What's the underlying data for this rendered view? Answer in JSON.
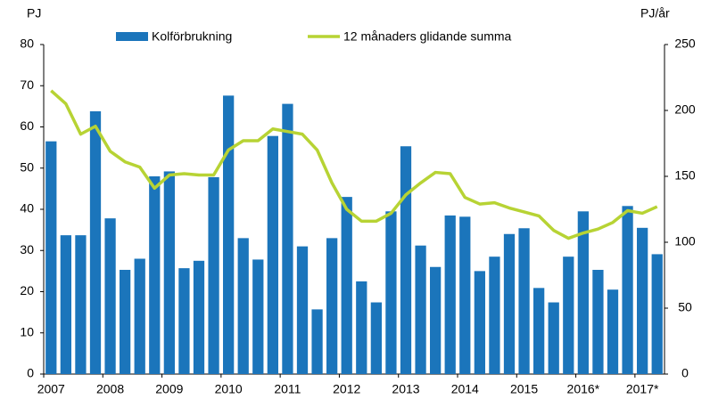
{
  "chart_data": {
    "type": "bar",
    "y_label": "PJ",
    "y2_label": "PJ/år",
    "categories": [
      "2007",
      null,
      null,
      null,
      "2008",
      null,
      null,
      null,
      "2009",
      null,
      null,
      null,
      "2010",
      null,
      null,
      null,
      "2011",
      null,
      null,
      null,
      "2012",
      null,
      null,
      null,
      "2013",
      null,
      null,
      null,
      "2014",
      null,
      null,
      null,
      "2015",
      null,
      null,
      null,
      "2016*",
      null,
      null,
      null,
      "2017*",
      null
    ],
    "series": [
      {
        "name": "Kolförbrukning",
        "type": "bar",
        "color": "#1b75bb",
        "values": [
          56.5,
          33.7,
          33.7,
          63.8,
          37.8,
          25.3,
          28.0,
          48.0,
          49.2,
          25.7,
          27.5,
          47.8,
          67.6,
          33.0,
          27.8,
          57.8,
          65.6,
          31.0,
          15.7,
          33.0,
          43.0,
          22.5,
          17.4,
          39.5,
          55.3,
          31.2,
          26.0,
          38.5,
          38.2,
          25.0,
          28.5,
          34.0,
          35.4,
          20.9,
          17.4,
          28.5,
          39.5,
          25.3,
          20.5,
          40.8,
          35.5,
          29.1
        ]
      },
      {
        "name": "12 månaders glidande summa",
        "type": "line",
        "axis": "y2",
        "color": "#b7d334",
        "values": [
          215,
          205,
          182,
          188,
          169,
          161,
          157,
          141,
          151,
          152,
          151,
          151,
          170,
          177,
          177,
          186,
          184,
          182,
          170,
          145,
          125,
          116,
          116,
          122,
          136,
          145,
          153,
          152,
          134,
          129,
          130,
          126,
          123,
          120,
          109,
          103,
          107,
          110,
          115,
          124,
          122,
          127
        ]
      }
    ],
    "ylim": [
      0,
      80
    ],
    "yticks": [
      0,
      10,
      20,
      30,
      40,
      50,
      60,
      70,
      80
    ],
    "y2lim": [
      0,
      250
    ],
    "y2ticks": [
      0,
      50,
      100,
      150,
      200,
      250
    ],
    "legend": "top"
  }
}
